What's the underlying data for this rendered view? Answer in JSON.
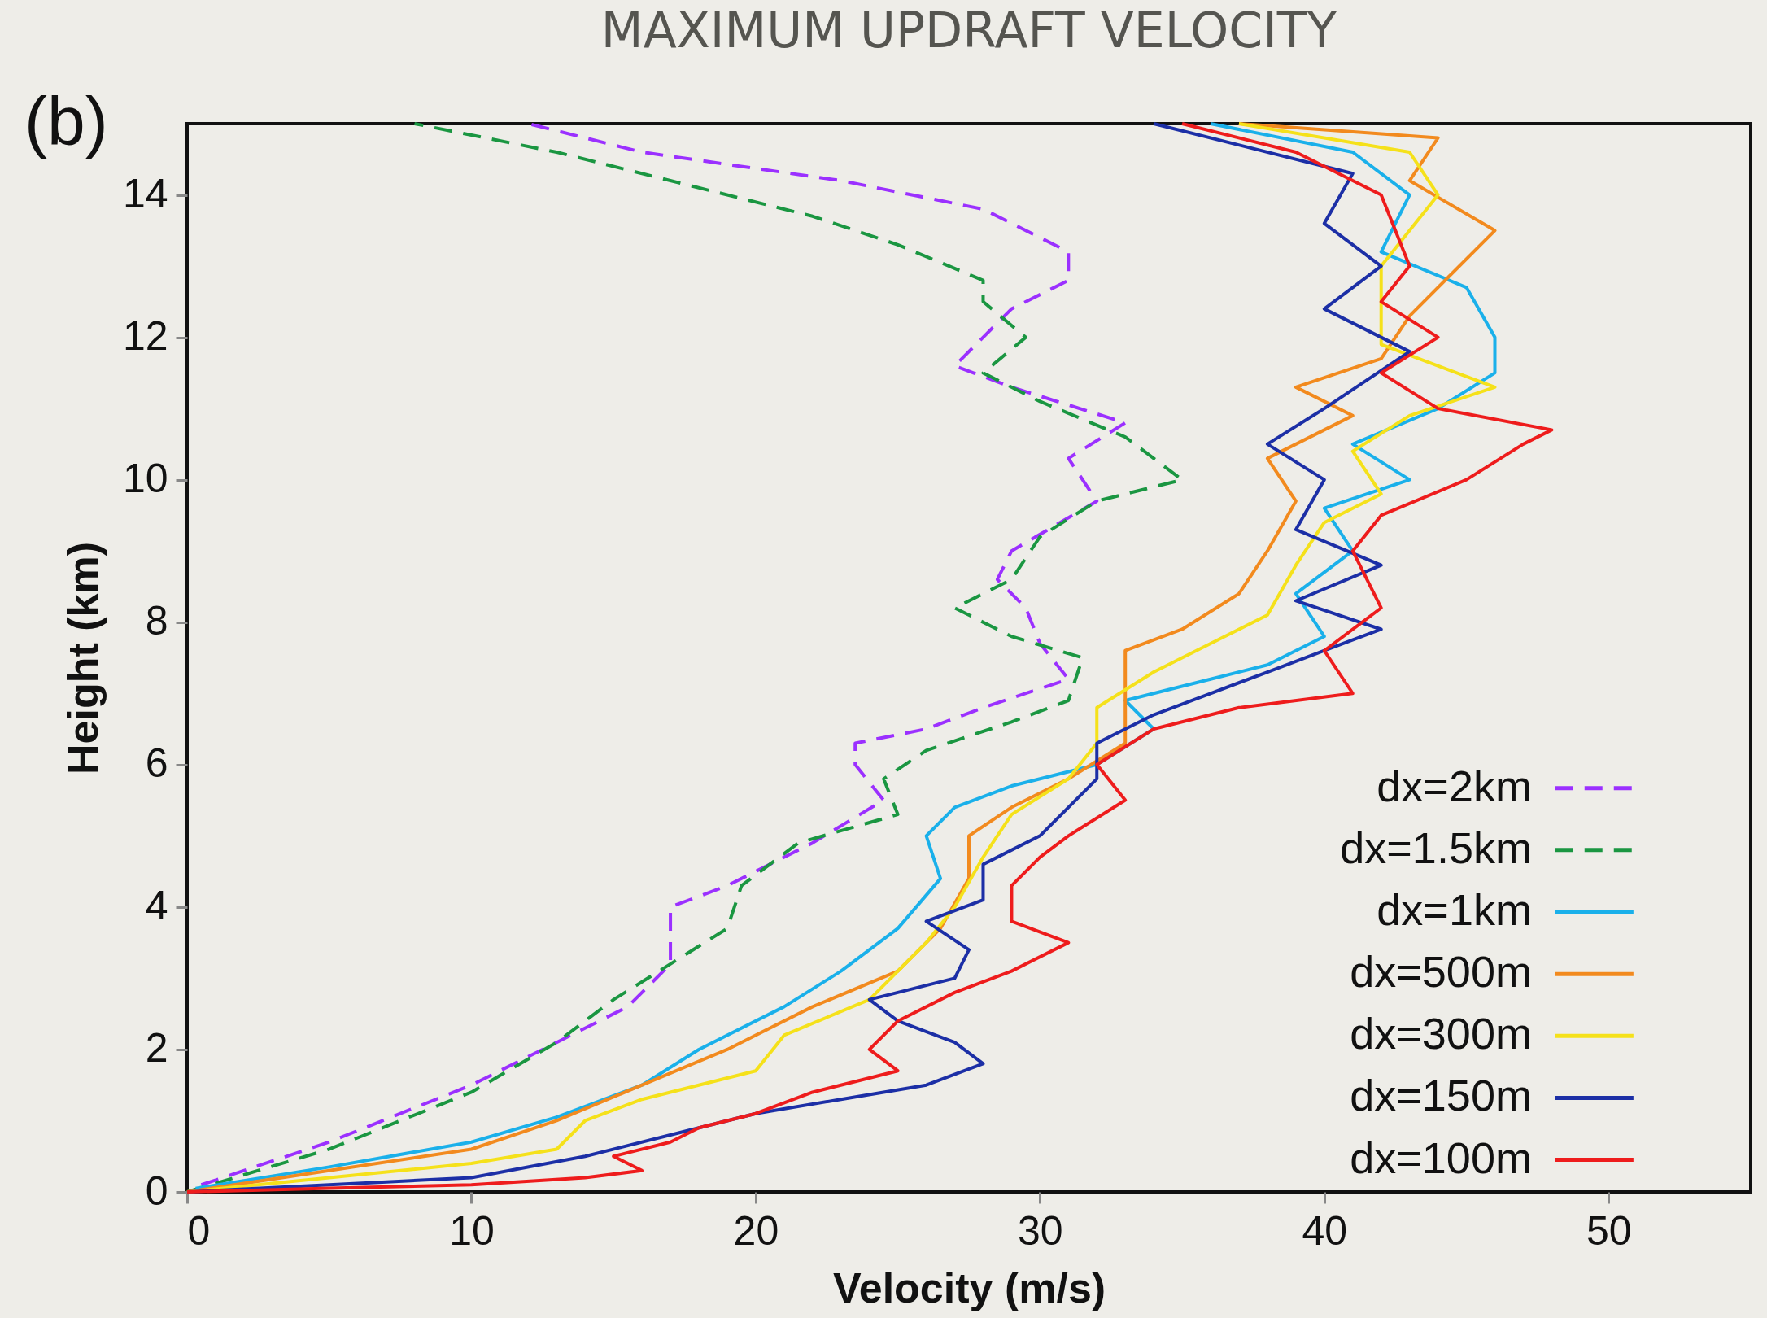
{
  "chart_data": {
    "type": "line",
    "title": "MAXIMUM UPDRAFT VELOCITY",
    "xlabel": "Velocity (m/s)",
    "ylabel": "Height (km)",
    "annotations": [
      "(b)"
    ],
    "xlim": [
      0,
      55
    ],
    "xticks": [
      0,
      10,
      20,
      30,
      40,
      50
    ],
    "ylim": [
      0,
      15
    ],
    "yticks": [
      0,
      2,
      4,
      6,
      8,
      10,
      12,
      14
    ],
    "grid": false,
    "legend": "bottom right",
    "marker": "none",
    "series": [
      {
        "name": "dx=2km",
        "color": "#9b30ff",
        "line_style": "dashed",
        "x": [
          0.5,
          5,
          10,
          13,
          15.5,
          17,
          17,
          19,
          22,
          24.5,
          23.5,
          23.5,
          26,
          28,
          31,
          30,
          29.5,
          28.5,
          29,
          32,
          31,
          33,
          29,
          27,
          28,
          29,
          31,
          31,
          28,
          23,
          16,
          12
        ],
        "values": [
          0.1,
          0.7,
          1.5,
          2.1,
          2.6,
          3.2,
          4.0,
          4.3,
          4.9,
          5.5,
          6.0,
          6.3,
          6.5,
          6.8,
          7.2,
          7.7,
          8.2,
          8.6,
          9.0,
          9.7,
          10.3,
          10.8,
          11.3,
          11.6,
          12,
          12.4,
          12.8,
          13.2,
          13.8,
          14.2,
          14.6,
          15
        ]
      },
      {
        "name": "dx=1.5km",
        "color": "#1a9641",
        "line_style": "dashed",
        "x": [
          0,
          5,
          10,
          13,
          15,
          17,
          19,
          19.5,
          21.5,
          25,
          24.5,
          26,
          29,
          31,
          31.5,
          29,
          27,
          29,
          30,
          32,
          35,
          33,
          30,
          28,
          29.5,
          28,
          28,
          25,
          22,
          17,
          13,
          8
        ],
        "values": [
          0,
          0.6,
          1.4,
          2.1,
          2.7,
          3.2,
          3.7,
          4.3,
          4.9,
          5.3,
          5.8,
          6.2,
          6.6,
          6.9,
          7.5,
          7.8,
          8.2,
          8.6,
          9.2,
          9.7,
          10.0,
          10.6,
          11.1,
          11.5,
          12.0,
          12.5,
          12.8,
          13.3,
          13.7,
          14.2,
          14.6,
          15
        ]
      },
      {
        "name": "dx=1km",
        "color": "#1ab0ea",
        "line_style": "solid",
        "x": [
          0.3,
          5,
          10,
          13,
          16,
          18,
          21,
          23,
          25,
          26.5,
          26,
          27,
          29,
          32,
          34,
          33,
          36,
          38,
          40,
          39,
          41,
          40,
          43,
          41,
          44,
          46,
          46,
          45,
          42,
          43,
          41,
          36
        ],
        "values": [
          0.05,
          0.35,
          0.7,
          1.05,
          1.5,
          2.0,
          2.6,
          3.1,
          3.7,
          4.4,
          5.0,
          5.4,
          5.7,
          6.0,
          6.5,
          6.9,
          7.2,
          7.4,
          7.8,
          8.4,
          9.0,
          9.6,
          10.0,
          10.5,
          11.0,
          11.5,
          12.0,
          12.7,
          13.2,
          14.0,
          14.6,
          15
        ]
      },
      {
        "name": "dx=500m",
        "color": "#f28a1e",
        "line_style": "solid",
        "x": [
          0,
          5,
          10,
          13,
          16,
          19,
          22,
          25,
          26.5,
          27.5,
          27.5,
          29,
          31,
          33,
          33,
          33,
          35,
          37,
          38,
          39,
          38,
          41,
          39,
          42,
          43,
          46,
          43,
          44,
          37
        ],
        "values": [
          0,
          0.3,
          0.6,
          1.0,
          1.5,
          2.0,
          2.6,
          3.1,
          3.7,
          4.4,
          5.0,
          5.4,
          5.8,
          6.3,
          7.0,
          7.6,
          7.9,
          8.4,
          9.0,
          9.7,
          10.3,
          10.9,
          11.3,
          11.7,
          12.3,
          13.5,
          14.2,
          14.8,
          15
        ]
      },
      {
        "name": "dx=300m",
        "color": "#f5e11a",
        "line_style": "solid",
        "x": [
          0,
          5,
          10,
          13,
          14,
          16,
          20,
          21,
          24,
          26,
          27,
          28,
          29,
          31,
          32,
          32,
          34,
          36,
          38,
          39,
          40,
          42,
          41,
          43,
          46,
          42,
          42,
          42,
          44,
          43,
          37
        ],
        "values": [
          0,
          0.2,
          0.4,
          0.6,
          1.0,
          1.3,
          1.7,
          2.2,
          2.7,
          3.5,
          4.0,
          4.7,
          5.3,
          5.8,
          6.3,
          6.8,
          7.3,
          7.7,
          8.1,
          8.8,
          9.4,
          9.8,
          10.4,
          10.9,
          11.3,
          11.9,
          12.5,
          13.0,
          14.0,
          14.6,
          15
        ]
      },
      {
        "name": "dx=150m",
        "color": "#1c2fa6",
        "line_style": "solid",
        "x": [
          0,
          5,
          10,
          14,
          17,
          20,
          23,
          26,
          28,
          27,
          25,
          24,
          27,
          27.5,
          26,
          28,
          28,
          30,
          31,
          32,
          32,
          34,
          36,
          38,
          40,
          42,
          39,
          42,
          39,
          40,
          38,
          40,
          43,
          40,
          42,
          40,
          41,
          34
        ],
        "values": [
          0,
          0.1,
          0.2,
          0.5,
          0.8,
          1.1,
          1.3,
          1.5,
          1.8,
          2.1,
          2.4,
          2.7,
          3.0,
          3.4,
          3.8,
          4.1,
          4.6,
          5.0,
          5.4,
          5.8,
          6.3,
          6.7,
          7.0,
          7.3,
          7.6,
          7.9,
          8.3,
          8.8,
          9.3,
          10.0,
          10.5,
          11,
          11.8,
          12.4,
          13,
          13.6,
          14.3,
          15
        ]
      },
      {
        "name": "dx=100m",
        "color": "#ee1c1c",
        "line_style": "solid",
        "x": [
          0,
          5,
          10,
          14,
          16,
          15,
          17,
          18,
          20,
          22,
          25,
          24,
          25,
          27,
          29,
          31,
          29,
          29,
          30,
          31,
          33,
          32,
          34,
          37,
          41,
          40,
          42,
          41,
          42,
          45,
          47,
          48,
          44,
          42,
          44,
          42,
          43,
          42,
          39,
          35
        ],
        "values": [
          0,
          0.05,
          0.1,
          0.2,
          0.3,
          0.5,
          0.7,
          0.9,
          1.1,
          1.4,
          1.7,
          2.0,
          2.4,
          2.8,
          3.1,
          3.5,
          3.8,
          4.3,
          4.7,
          5.0,
          5.5,
          6.0,
          6.5,
          6.8,
          7.0,
          7.6,
          8.2,
          9.0,
          9.5,
          10.0,
          10.5,
          10.7,
          11.0,
          11.5,
          12.0,
          12.5,
          13,
          14,
          14.6,
          15
        ]
      }
    ]
  }
}
